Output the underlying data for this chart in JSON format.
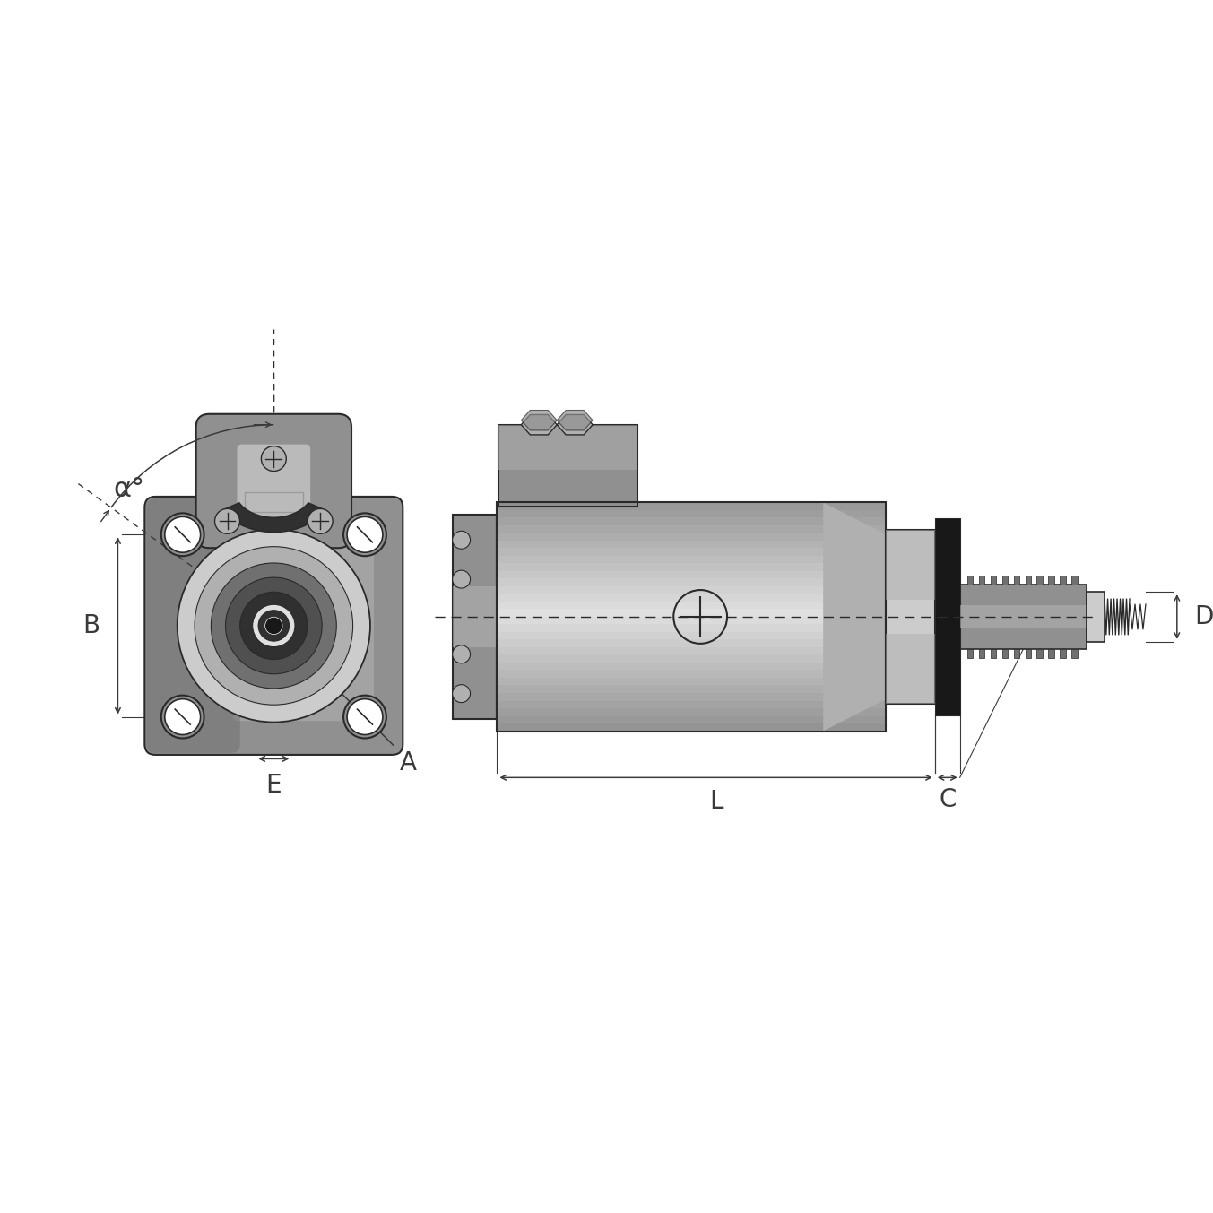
{
  "bg": "#ffffff",
  "lc": "#2a2a2a",
  "g0": "#f0f0f0",
  "g1": "#e0e0e0",
  "g2": "#cccccc",
  "g3": "#b0b0b0",
  "g4": "#909090",
  "g5": "#707070",
  "g6": "#505050",
  "g7": "#303030",
  "g8": "#181818",
  "dc": "#3a3a3a",
  "label_A": "A",
  "label_B": "B",
  "label_C": "C",
  "label_D": "D",
  "label_E": "E",
  "label_L": "L",
  "label_alpha": "α°",
  "fs": 20
}
